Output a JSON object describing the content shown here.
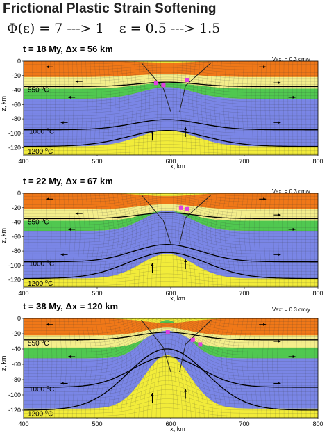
{
  "title": "Frictional Plastic Strain Softening",
  "formula": {
    "phi_part": "Φ(ε) = 7 ---> 1",
    "eps_part": "ε = 0.5 ---> 1.5"
  },
  "axis": {
    "xlabel": "x, km",
    "ylabel": "z, km",
    "x_ticks": [
      "400",
      "500",
      "600",
      "700",
      "800"
    ],
    "z_ticks": [
      "0",
      "-20",
      "-40",
      "-60",
      "-80",
      "-100",
      "-120"
    ],
    "xlim": [
      400,
      800
    ],
    "zlim": [
      -130,
      0
    ]
  },
  "panels": [
    {
      "id": "p1",
      "title_t": "t = 18 My, ",
      "title_dx": "Δx = 56 km",
      "vext": "Vext = 0.3 cm/y",
      "isotherms": [
        {
          "label": "550",
          "unit": "C"
        },
        {
          "label": "1000",
          "unit": "C"
        },
        {
          "label": "1200",
          "unit": "C"
        }
      ]
    },
    {
      "id": "p2",
      "title_t": "t = 22 My, ",
      "title_dx": "Δx = 67 km",
      "vext": "Vext = 0.3 cm/y",
      "isotherms": [
        {
          "label": "550",
          "unit": "C"
        },
        {
          "label": "1000",
          "unit": "C"
        },
        {
          "label": "1200",
          "unit": "C"
        }
      ]
    },
    {
      "id": "p3",
      "title_t": "t = 38 My, ",
      "title_dx": "Δx = 120 km",
      "vext": "Vext = 0.3 cm/y",
      "isotherms": [
        {
          "label": "550",
          "unit": "C"
        },
        {
          "label": "1000",
          "unit": "C"
        },
        {
          "label": "1200",
          "unit": "C"
        }
      ]
    }
  ],
  "colors": {
    "upper_crust": "#f07818",
    "lower_crust": "#f4ee8c",
    "mantle_lithosphere": "#50c850",
    "strong_mantle": "#7a86e6",
    "asthenosphere": "#f2ec3a",
    "grid": "#333333",
    "markers": "#e040e0"
  }
}
